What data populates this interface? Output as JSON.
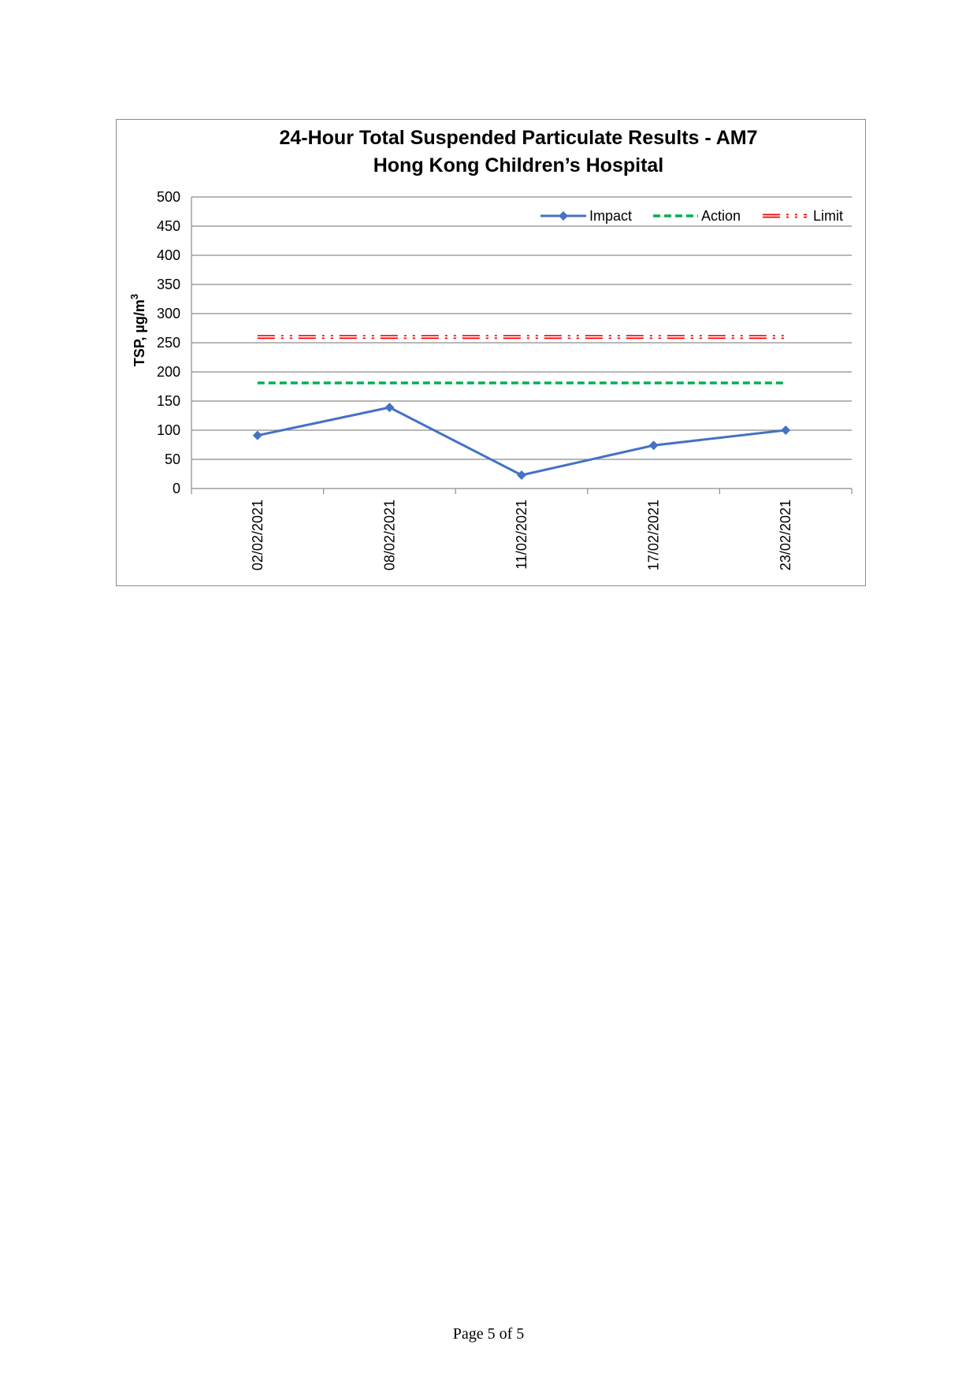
{
  "chart_data": {
    "type": "line",
    "title": "24-Hour Total Suspended Particulate Results - AM7",
    "subtitle": "Hong Kong Children’s Hospital",
    "ylabel_main": "TSP, µg/m",
    "ylabel_sup": "3",
    "ylim": [
      0,
      500
    ],
    "yticks": [
      0,
      50,
      100,
      150,
      200,
      250,
      300,
      350,
      400,
      450,
      500
    ],
    "categories": [
      "02/02/2021",
      "08/02/2021",
      "11/02/2021",
      "17/02/2021",
      "23/02/2021"
    ],
    "grid": true,
    "legend_position": "top-right",
    "series": [
      {
        "name": "Impact",
        "values": [
          91,
          139,
          23,
          74,
          100
        ],
        "color": "#4472C4",
        "style": "solid-diamond"
      },
      {
        "name": "Action",
        "values": [
          181,
          181,
          181,
          181,
          181
        ],
        "color": "#00B050",
        "style": "dashed"
      },
      {
        "name": "Limit",
        "values": [
          260,
          260,
          260,
          260,
          260
        ],
        "color": "#FF0000",
        "style": "dash-dot-dot"
      }
    ]
  },
  "footer": {
    "page_label": "Page 5 of 5"
  }
}
